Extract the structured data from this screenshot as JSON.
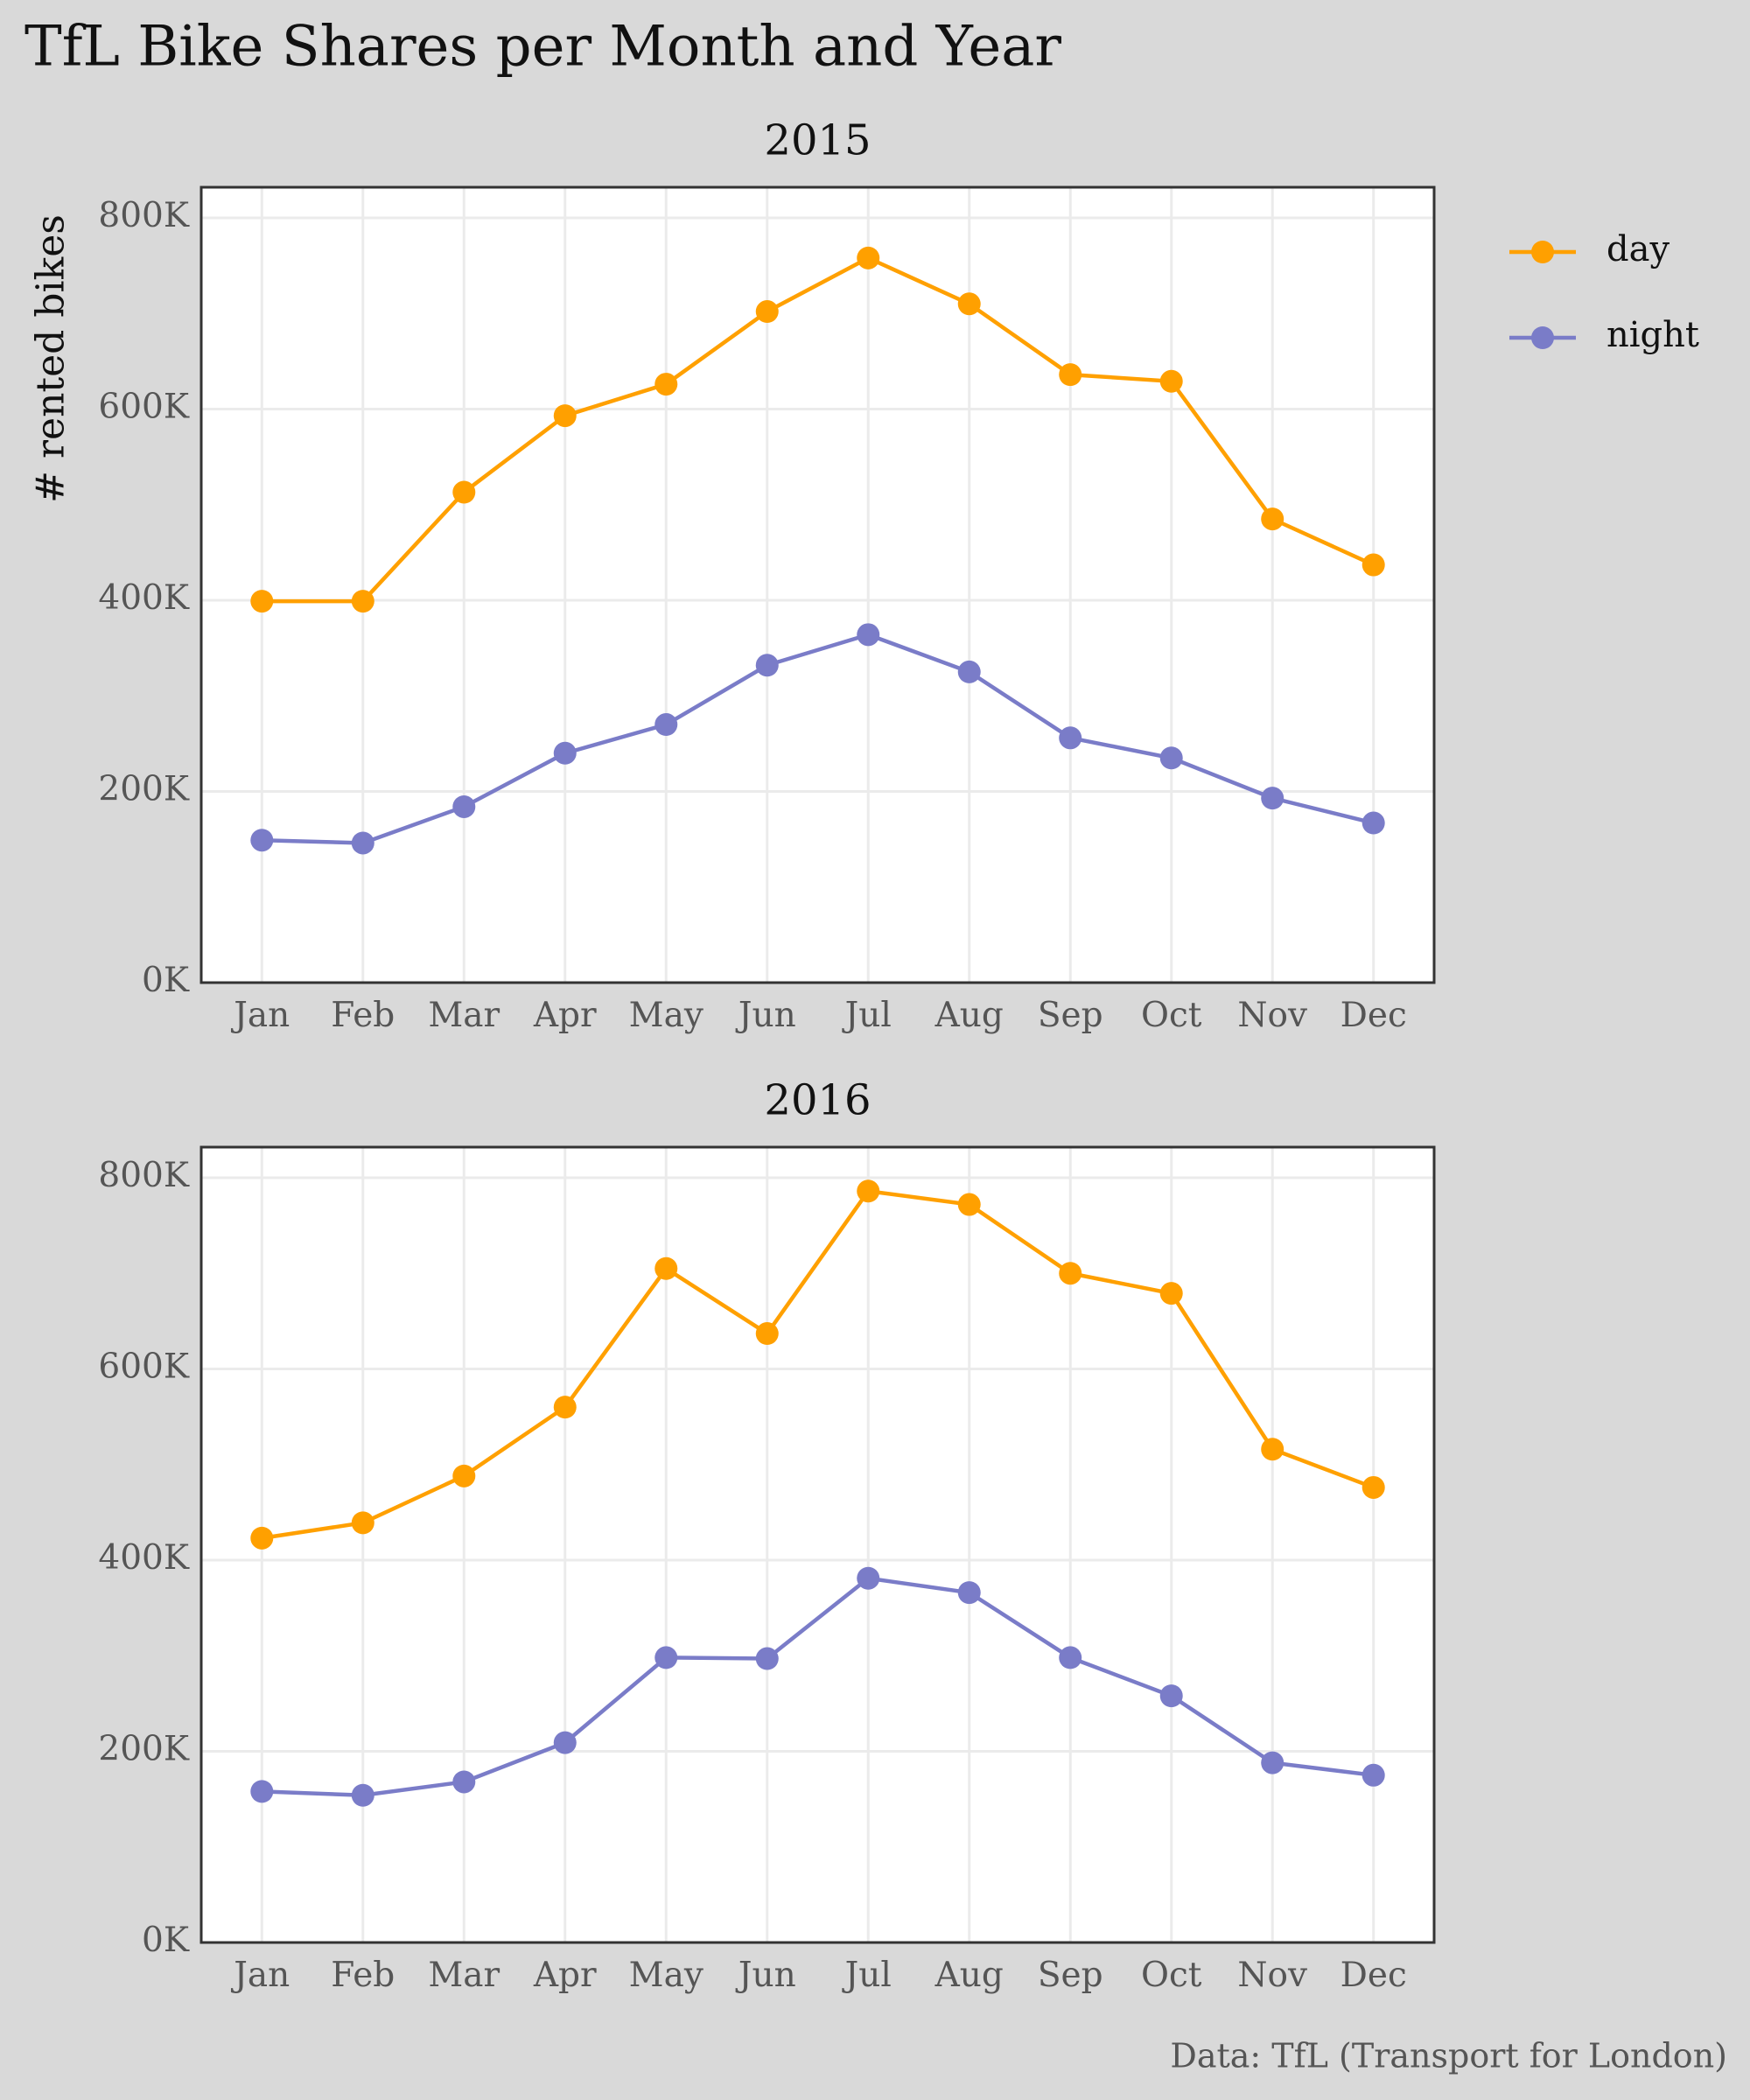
{
  "title": "TfL Bike Shares per Month and Year",
  "caption": "Data: TfL (Transport for London)",
  "legend_position": "right",
  "chart_data": [
    {
      "type": "line",
      "title": "2015",
      "y_label": "# rented bikes",
      "grid": true,
      "categories": [
        "Jan",
        "Feb",
        "Mar",
        "Apr",
        "May",
        "Jun",
        "Jul",
        "Aug",
        "Sep",
        "Oct",
        "Nov",
        "Dec"
      ],
      "ylim": [
        0,
        832000
      ],
      "yticks": [
        {
          "value": 0,
          "label": "0K"
        },
        {
          "value": 200000,
          "label": "200K"
        },
        {
          "value": 400000,
          "label": "400K"
        },
        {
          "value": 600000,
          "label": "600K"
        },
        {
          "value": 800000,
          "label": "800K"
        }
      ],
      "series": [
        {
          "name": "day",
          "color": "#ffa000",
          "values": [
            399000,
            399000,
            513000,
            593000,
            626000,
            702000,
            758000,
            710000,
            636000,
            629000,
            485000,
            437000
          ]
        },
        {
          "name": "night",
          "color": "#7a7cc8",
          "values": [
            149000,
            146000,
            184000,
            240000,
            270000,
            332000,
            364000,
            325000,
            256000,
            235000,
            193000,
            167000
          ]
        }
      ]
    },
    {
      "type": "line",
      "title": "2016",
      "grid": true,
      "categories": [
        "Jan",
        "Feb",
        "Mar",
        "Apr",
        "May",
        "Jun",
        "Jul",
        "Aug",
        "Sep",
        "Oct",
        "Nov",
        "Dec"
      ],
      "ylim": [
        0,
        832000
      ],
      "yticks": [
        {
          "value": 0,
          "label": "0K"
        },
        {
          "value": 200000,
          "label": "200K"
        },
        {
          "value": 400000,
          "label": "400K"
        },
        {
          "value": 600000,
          "label": "600K"
        },
        {
          "value": 800000,
          "label": "800K"
        }
      ],
      "series": [
        {
          "name": "day",
          "color": "#ffa000",
          "values": [
            423000,
            439000,
            488000,
            560000,
            705000,
            637000,
            786000,
            772000,
            700000,
            679000,
            516000,
            476000
          ]
        },
        {
          "name": "night",
          "color": "#7a7cc8",
          "values": [
            158000,
            154000,
            168000,
            209000,
            298000,
            297000,
            381000,
            366000,
            298000,
            258000,
            188000,
            175000
          ]
        }
      ]
    }
  ]
}
